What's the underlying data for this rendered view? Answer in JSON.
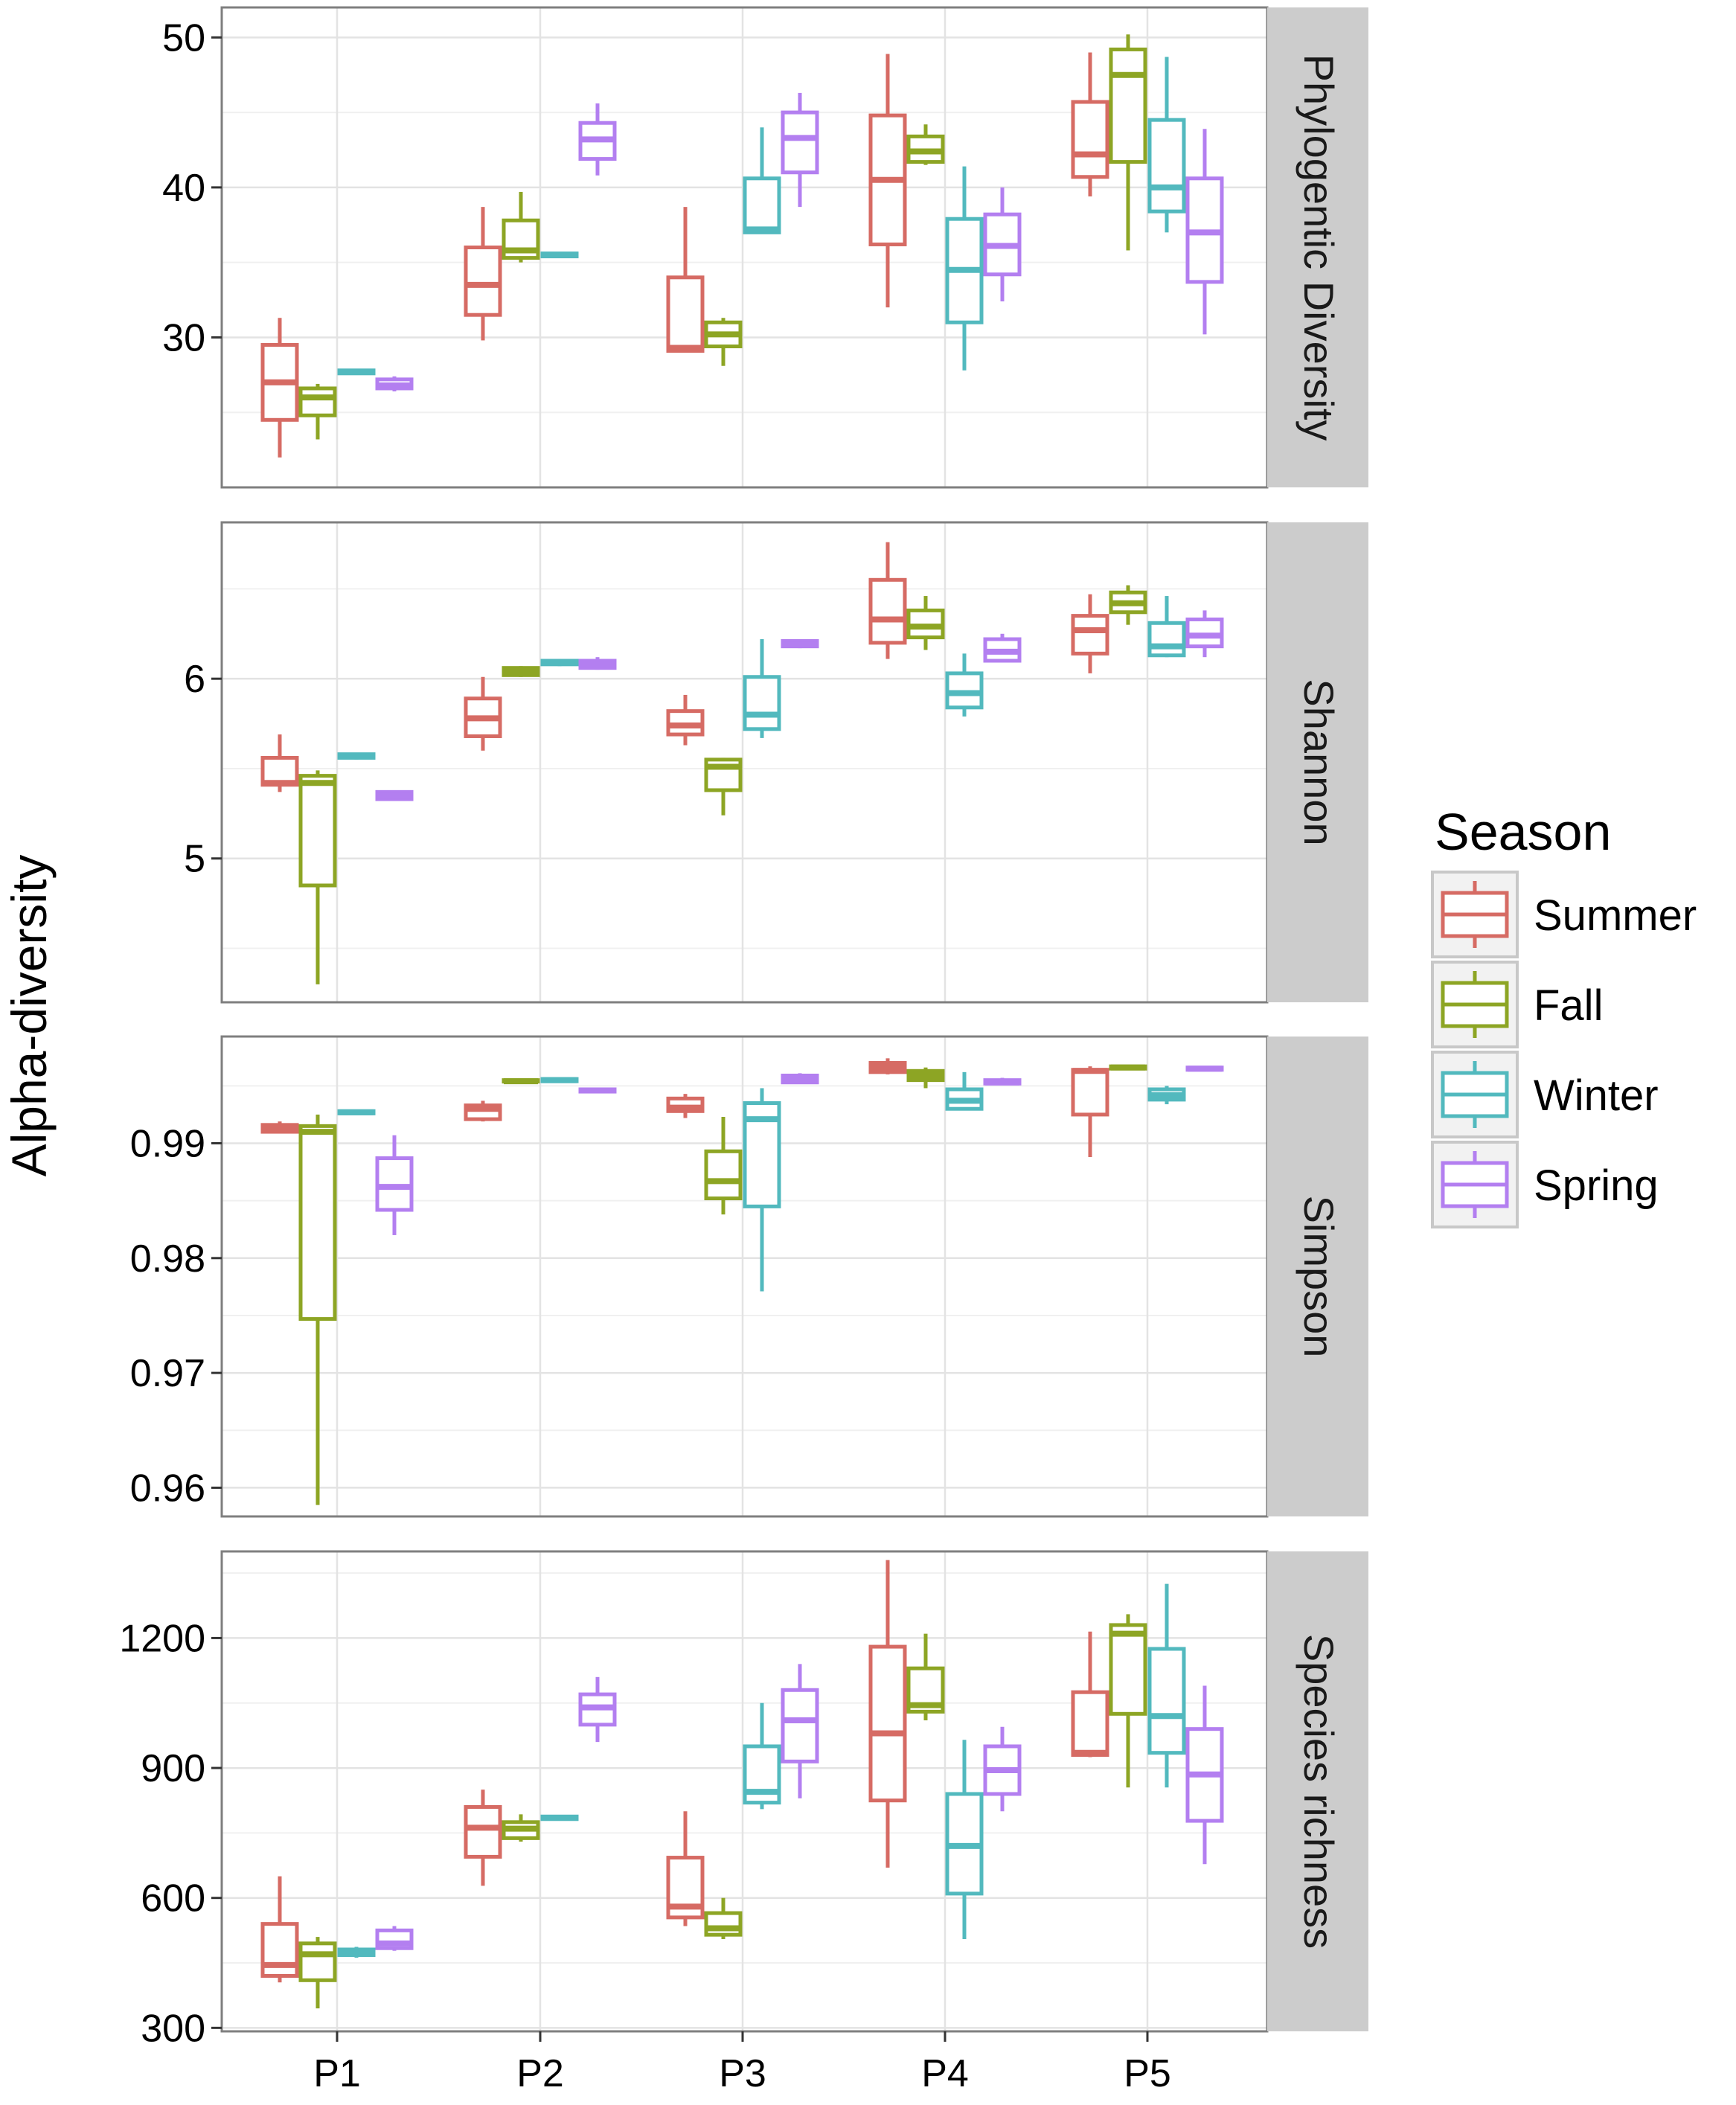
{
  "chart_data": {
    "type": "boxplot",
    "ylabel": "Alpha-diversity",
    "categories": [
      "P1",
      "P2",
      "P3",
      "P4",
      "P5"
    ],
    "legend": {
      "title": "Season",
      "position": "right",
      "entries": [
        {
          "name": "Summer",
          "color": "#d66b64"
        },
        {
          "name": "Fall",
          "color": "#8da524"
        },
        {
          "name": "Winter",
          "color": "#52b9be"
        },
        {
          "name": "Spring",
          "color": "#b37ff0"
        }
      ]
    },
    "panels": [
      {
        "label": "Phylogentic Diversity",
        "ylim": [
          20,
          52
        ],
        "yticks": [
          {
            "value": 30,
            "label": "30"
          },
          {
            "value": 40,
            "label": "40"
          },
          {
            "value": 50,
            "label": "50"
          }
        ],
        "minor": [
          25,
          35,
          45
        ],
        "boxes": [
          [
            [
              22,
              24.5,
              27,
              29.5,
              31.3
            ],
            [
              23.2,
              24.8,
              26,
              26.6,
              26.9
            ],
            [
              27.6,
              27.6,
              27.7,
              27.8,
              27.8
            ],
            [
              26.4,
              26.6,
              26.8,
              27.2,
              27.4
            ]
          ],
          [
            [
              29.8,
              31.5,
              33.5,
              36,
              38.7
            ],
            [
              35,
              35.3,
              35.8,
              37.8,
              39.7
            ],
            [
              35.3,
              35.4,
              35.5,
              35.6,
              35.7
            ],
            [
              40.8,
              41.9,
              43.2,
              44.3,
              45.6
            ]
          ],
          [
            [
              29,
              29.1,
              29.3,
              34,
              38.7
            ],
            [
              28.1,
              29.4,
              30.2,
              31,
              31.3
            ],
            [
              37,
              37,
              37.2,
              40.6,
              44
            ],
            [
              38.7,
              41,
              43.3,
              45,
              46.3
            ]
          ],
          [
            [
              32,
              36.2,
              40.5,
              44.8,
              48.9
            ],
            [
              41.5,
              41.7,
              42.4,
              43.4,
              44.2
            ],
            [
              27.8,
              31,
              34.5,
              37.9,
              41.4
            ],
            [
              32.4,
              34.2,
              36.1,
              38.2,
              40
            ]
          ],
          [
            [
              39.4,
              40.7,
              42.2,
              45.7,
              49
            ],
            [
              35.8,
              41.7,
              47.5,
              49.2,
              50.2
            ],
            [
              37,
              38.4,
              40,
              44.5,
              48.7
            ],
            [
              30.2,
              33.7,
              37,
              40.6,
              43.9
            ]
          ]
        ]
      },
      {
        "label": "Shannon",
        "ylim": [
          4.2,
          6.87
        ],
        "yticks": [
          {
            "value": 5,
            "label": "5"
          },
          {
            "value": 6,
            "label": "6"
          }
        ],
        "minor": [
          4.5,
          5.5,
          6.5
        ],
        "boxes": [
          [
            [
              5.37,
              5.41,
              5.42,
              5.56,
              5.69
            ],
            [
              4.3,
              4.85,
              5.42,
              5.46,
              5.49
            ],
            [
              5.55,
              5.56,
              5.57,
              5.58,
              5.58
            ],
            [
              5.32,
              5.33,
              5.35,
              5.37,
              5.37
            ]
          ],
          [
            [
              5.6,
              5.68,
              5.78,
              5.89,
              6.01
            ],
            [
              6.01,
              6.02,
              6.04,
              6.06,
              6.07
            ],
            [
              6.07,
              6.08,
              6.09,
              6.1,
              6.11
            ],
            [
              6.05,
              6.06,
              6.08,
              6.1,
              6.12
            ]
          ],
          [
            [
              5.63,
              5.69,
              5.74,
              5.82,
              5.91
            ],
            [
              5.24,
              5.38,
              5.51,
              5.55,
              5.56
            ],
            [
              5.67,
              5.72,
              5.8,
              6.01,
              6.22
            ],
            [
              6.17,
              6.18,
              6.19,
              6.21,
              6.22
            ]
          ],
          [
            [
              6.11,
              6.2,
              6.33,
              6.55,
              6.76
            ],
            [
              6.16,
              6.23,
              6.29,
              6.38,
              6.46
            ],
            [
              5.79,
              5.84,
              5.92,
              6.03,
              6.14
            ],
            [
              6.09,
              6.1,
              6.15,
              6.22,
              6.25
            ]
          ],
          [
            [
              6.03,
              6.14,
              6.27,
              6.35,
              6.47
            ],
            [
              6.3,
              6.37,
              6.42,
              6.48,
              6.52
            ],
            [
              6.12,
              6.13,
              6.18,
              6.31,
              6.46
            ],
            [
              6.12,
              6.18,
              6.24,
              6.33,
              6.38
            ]
          ]
        ]
      },
      {
        "label": "Simpson",
        "ylim": [
          0.9575,
          0.9993
        ],
        "yticks": [
          {
            "value": 0.96,
            "label": "0.96"
          },
          {
            "value": 0.97,
            "label": "0.97"
          },
          {
            "value": 0.98,
            "label": "0.98"
          },
          {
            "value": 0.99,
            "label": "0.99"
          }
        ],
        "minor": [
          0.965,
          0.975,
          0.985,
          0.995
        ],
        "boxes": [
          [
            [
              0.9909,
              0.991,
              0.9912,
              0.9916,
              0.9919
            ],
            [
              0.9585,
              0.9747,
              0.991,
              0.9915,
              0.9925
            ],
            [
              0.9925,
              0.9926,
              0.9927,
              0.9928,
              0.9929
            ],
            [
              0.982,
              0.9842,
              0.9862,
              0.9887,
              0.9907
            ]
          ],
          [
            [
              0.9919,
              0.9921,
              0.993,
              0.9933,
              0.9937
            ],
            [
              0.9953,
              0.9954,
              0.9954,
              0.9955,
              0.9956
            ],
            [
              0.9953,
              0.9954,
              0.9955,
              0.9956,
              0.9957
            ],
            [
              0.9944,
              0.9945,
              0.9946,
              0.9947,
              0.9948
            ]
          ],
          [
            [
              0.9922,
              0.9928,
              0.9931,
              0.9939,
              0.9943
            ],
            [
              0.9838,
              0.9852,
              0.9867,
              0.9893,
              0.9923
            ],
            [
              0.9771,
              0.9845,
              0.9921,
              0.9935,
              0.9948
            ],
            [
              0.9952,
              0.9953,
              0.9956,
              0.9959,
              0.9961
            ]
          ],
          [
            [
              0.996,
              0.9962,
              0.9966,
              0.997,
              0.9974
            ],
            [
              0.9948,
              0.9955,
              0.9959,
              0.9963,
              0.9966
            ],
            [
              0.9929,
              0.993,
              0.9937,
              0.9947,
              0.9962
            ],
            [
              0.9951,
              0.9952,
              0.9953,
              0.9955,
              0.9957
            ]
          ],
          [
            [
              0.9888,
              0.9925,
              0.9963,
              0.9964,
              0.9967
            ],
            [
              0.9964,
              0.9965,
              0.9966,
              0.9967,
              0.9968
            ],
            [
              0.9934,
              0.9938,
              0.9942,
              0.9947,
              0.995
            ],
            [
              0.9963,
              0.9964,
              0.9965,
              0.9966,
              0.9967
            ]
          ]
        ]
      },
      {
        "label": "Species richness",
        "ylim": [
          292,
          1400
        ],
        "yticks": [
          {
            "value": 300,
            "label": "300"
          },
          {
            "value": 600,
            "label": "600"
          },
          {
            "value": 900,
            "label": "900"
          },
          {
            "value": 1200,
            "label": "1200"
          }
        ],
        "minor": [
          450,
          750,
          1050,
          1350
        ],
        "boxes": [
          [
            [
              405,
              420,
              445,
              540,
              650
            ],
            [
              345,
              410,
              470,
              495,
              510
            ],
            [
              462,
              468,
              475,
              481,
              487
            ],
            [
              478,
              484,
              495,
              525,
              535
            ]
          ],
          [
            [
              628,
              695,
              762,
              810,
              850
            ],
            [
              730,
              738,
              760,
              775,
              793
            ],
            [
              780,
              782,
              785,
              788,
              790
            ],
            [
              960,
              1000,
              1040,
              1070,
              1110
            ]
          ],
          [
            [
              535,
              555,
              580,
              693,
              800
            ],
            [
              505,
              515,
              530,
              565,
              600
            ],
            [
              805,
              820,
              845,
              950,
              1050
            ],
            [
              830,
              915,
              1010,
              1080,
              1140
            ]
          ],
          [
            [
              670,
              825,
              980,
              1180,
              1380
            ],
            [
              1010,
              1030,
              1045,
              1130,
              1210
            ],
            [
              505,
              610,
              720,
              840,
              965
            ],
            [
              800,
              840,
              895,
              950,
              995
            ]
          ],
          [
            [
              925,
              930,
              935,
              1075,
              1215
            ],
            [
              855,
              1025,
              1210,
              1230,
              1255
            ],
            [
              855,
              935,
              1020,
              1175,
              1325
            ],
            [
              678,
              778,
              885,
              990,
              1090
            ]
          ]
        ]
      }
    ]
  }
}
